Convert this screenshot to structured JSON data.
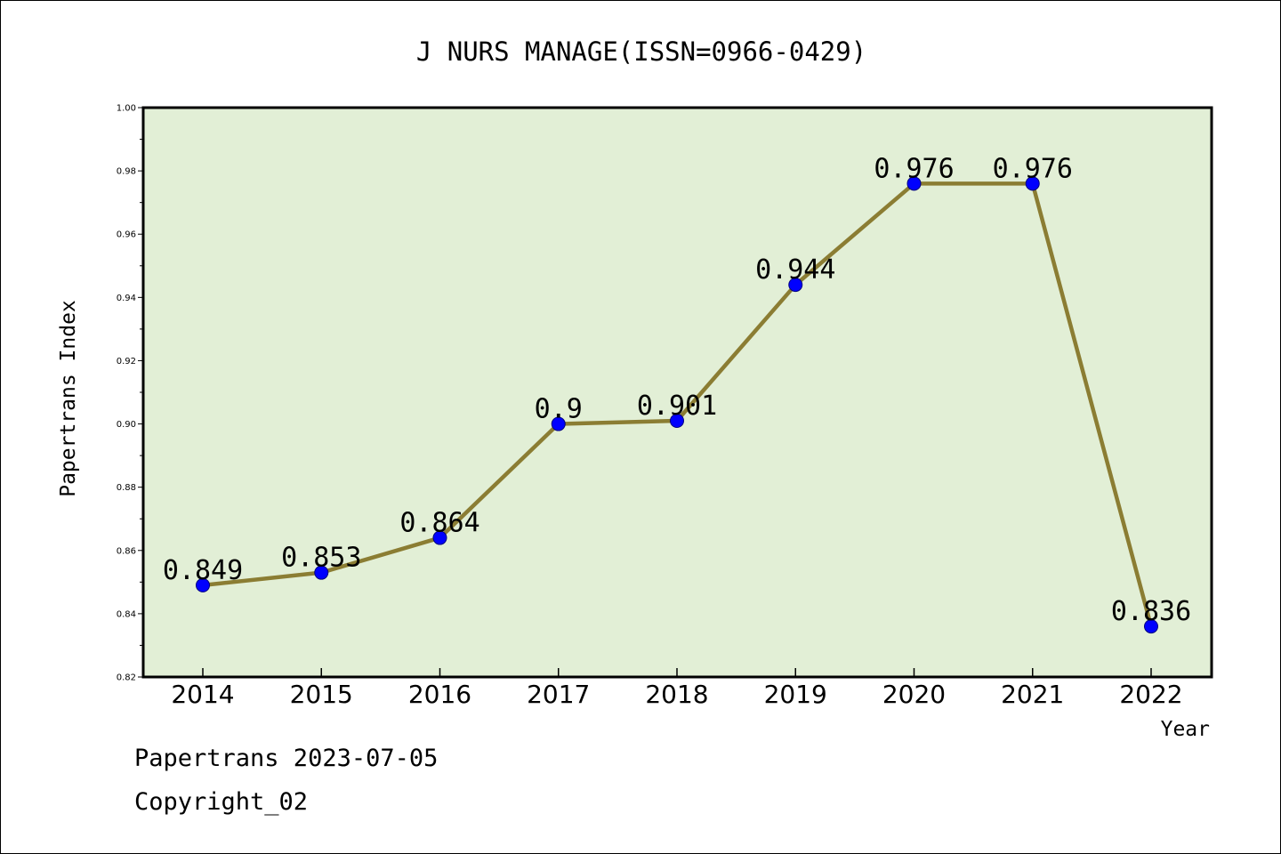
{
  "chart_data": {
    "type": "line",
    "title": "J NURS MANAGE(ISSN=0966-0429)",
    "xlabel": "Year",
    "ylabel": "Papertrans Index",
    "categories": [
      "2014",
      "2015",
      "2016",
      "2017",
      "2018",
      "2019",
      "2020",
      "2021",
      "2022"
    ],
    "series": [
      {
        "values": [
          0.849,
          0.853,
          0.864,
          0.9,
          0.901,
          0.944,
          0.976,
          0.976,
          0.836
        ],
        "data_labels": [
          "0.849",
          "0.853",
          "0.864",
          "0.9",
          "0.901",
          "0.944",
          "0.976",
          "0.976",
          "0.836"
        ]
      }
    ],
    "ylim": [
      0.82,
      1.0
    ],
    "yticks": [
      "0.82",
      "0.84",
      "0.86",
      "0.88",
      "0.90",
      "0.92",
      "0.94",
      "0.96",
      "0.98",
      "1.00"
    ],
    "grid": false,
    "colors": {
      "plot_background": "#e2efd6",
      "line": "#8b7d33",
      "marker": "#0000ff",
      "frame": "#000000"
    }
  },
  "footer": {
    "line1": "Papertrans 2023-07-05",
    "line2": "Copyright_02"
  }
}
